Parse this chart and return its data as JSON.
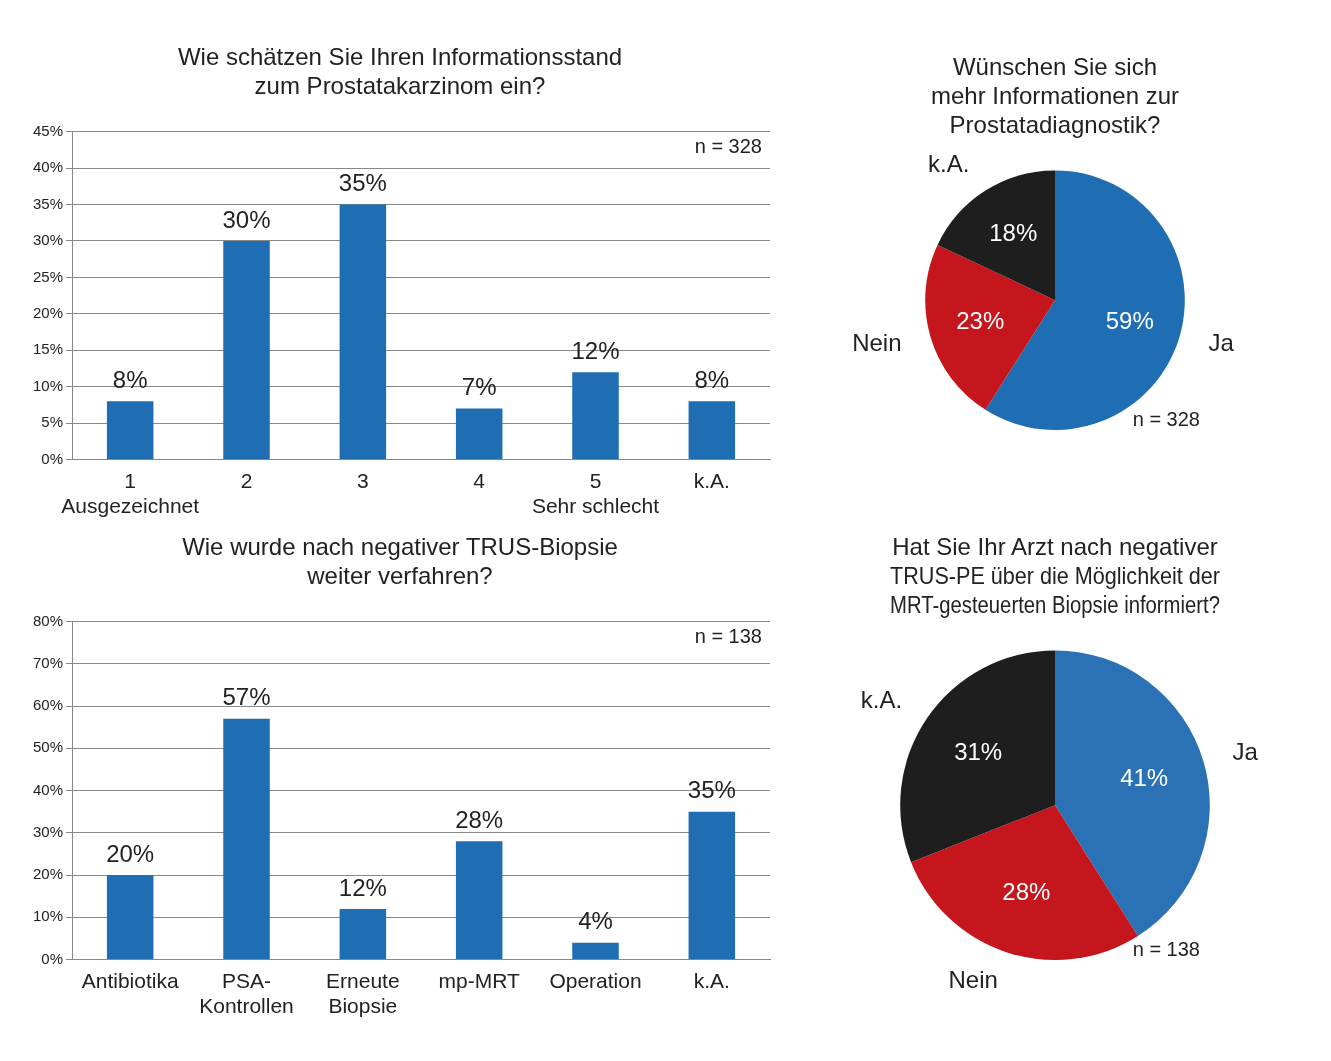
{
  "chart_data": [
    {
      "type": "bar",
      "title": "Wie schätzen Sie Ihren Informationsstand\nzum Prostatakarzinom ein?",
      "categories": [
        "1\nAusgezeichnet",
        "2",
        "3",
        "4",
        "5\nSehr schlecht",
        "k.A."
      ],
      "values": [
        8,
        30,
        35,
        7,
        12,
        8
      ],
      "color": "#1f6db3",
      "value_labels": [
        "8%",
        "30%",
        "35%",
        "7%",
        "12%",
        "8%"
      ],
      "ylim": [
        0,
        45
      ],
      "yticks": [
        {
          "value": 0,
          "label": "0%"
        },
        {
          "value": 5,
          "label": "5%"
        },
        {
          "value": 10,
          "label": "10%"
        },
        {
          "value": 15,
          "label": "15%"
        },
        {
          "value": 20,
          "label": "20%"
        },
        {
          "value": 25,
          "label": "25%"
        },
        {
          "value": 30,
          "label": "30%"
        },
        {
          "value": 35,
          "label": "35%"
        },
        {
          "value": 40,
          "label": "40%"
        },
        {
          "value": 45,
          "label": "45%"
        }
      ],
      "grid": "y",
      "annotations": [
        "n = 328"
      ]
    },
    {
      "type": "pie",
      "title": "Wünschen Sie sich\nmehr Informationen zur\nProstatadiagnostik?",
      "categories": [
        "Ja",
        "Nein",
        "k.A."
      ],
      "values": [
        59,
        23,
        18
      ],
      "colors": [
        "#1f6db3",
        "#c4161c",
        "#1e1e1e"
      ],
      "value_labels": [
        "59%",
        "23%",
        "18%"
      ],
      "annotations": [
        "n = 328"
      ]
    },
    {
      "type": "bar",
      "title": "Wie wurde nach negativer TRUS-Biopsie\nweiter verfahren?",
      "categories": [
        "Antibiotika",
        "PSA-\nKontrollen",
        "Erneute\nBiopsie",
        "mp-MRT",
        "Operation",
        "k.A."
      ],
      "values": [
        20,
        57,
        12,
        28,
        4,
        35
      ],
      "color": "#1f6db3",
      "value_labels": [
        "20%",
        "57%",
        "12%",
        "28%",
        "4%",
        "35%"
      ],
      "ylim": [
        0,
        80
      ],
      "yticks": [
        {
          "value": 0,
          "label": "0%"
        },
        {
          "value": 10,
          "label": "10%"
        },
        {
          "value": 20,
          "label": "20%"
        },
        {
          "value": 30,
          "label": "30%"
        },
        {
          "value": 40,
          "label": "40%"
        },
        {
          "value": 50,
          "label": "50%"
        },
        {
          "value": 60,
          "label": "60%"
        },
        {
          "value": 70,
          "label": "70%"
        },
        {
          "value": 80,
          "label": "80%"
        }
      ],
      "grid": "y",
      "annotations": [
        "n = 138"
      ]
    },
    {
      "type": "pie",
      "title": "Hat Sie Ihr Arzt nach negativer\nTRUS-PE über die Möglichkeit der\nMRT-gesteuerten Biopsie informiert?",
      "categories": [
        "Ja",
        "Nein",
        "k.A."
      ],
      "values": [
        41,
        28,
        31
      ],
      "colors": [
        "#2a72b5",
        "#c4161c",
        "#1e1e1e"
      ],
      "value_labels": [
        "41%",
        "28%",
        "31%"
      ],
      "annotations": [
        "n = 138"
      ]
    }
  ]
}
